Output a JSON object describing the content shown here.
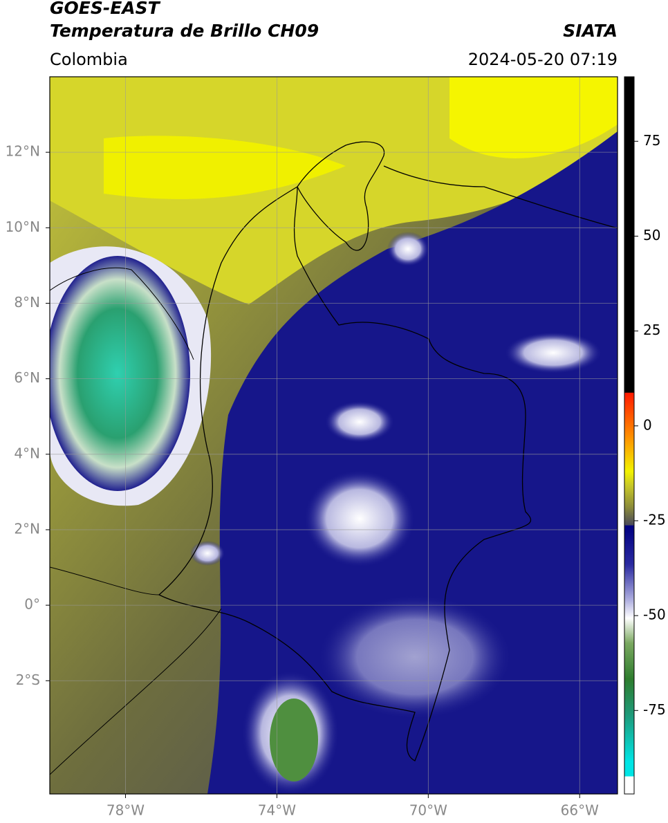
{
  "header": {
    "title": "GOES-EAST",
    "subtitle": "Temperatura de Brillo CH09",
    "region": "Colombia",
    "source": "SIATA",
    "timestamp": "2024-05-20 07:19"
  },
  "map": {
    "lon_range": [
      -80,
      -65
    ],
    "lat_range": [
      -5,
      14
    ],
    "lon_ticks": [
      {
        "value": -78,
        "label": "78°W"
      },
      {
        "value": -74,
        "label": "74°W"
      },
      {
        "value": -70,
        "label": "70°W"
      },
      {
        "value": -66,
        "label": "66°W"
      }
    ],
    "lat_ticks": [
      {
        "value": 12,
        "label": "12°N"
      },
      {
        "value": 10,
        "label": "10°N"
      },
      {
        "value": 8,
        "label": "8°N"
      },
      {
        "value": 6,
        "label": "6°N"
      },
      {
        "value": 4,
        "label": "4°N"
      },
      {
        "value": 2,
        "label": "2°N"
      },
      {
        "value": 0,
        "label": "0°"
      },
      {
        "value": -2,
        "label": "2°S"
      }
    ]
  },
  "colorbar": {
    "range": [
      -97,
      92
    ],
    "ticks": [
      75,
      50,
      25,
      0,
      -25,
      -50,
      -75
    ]
  }
}
